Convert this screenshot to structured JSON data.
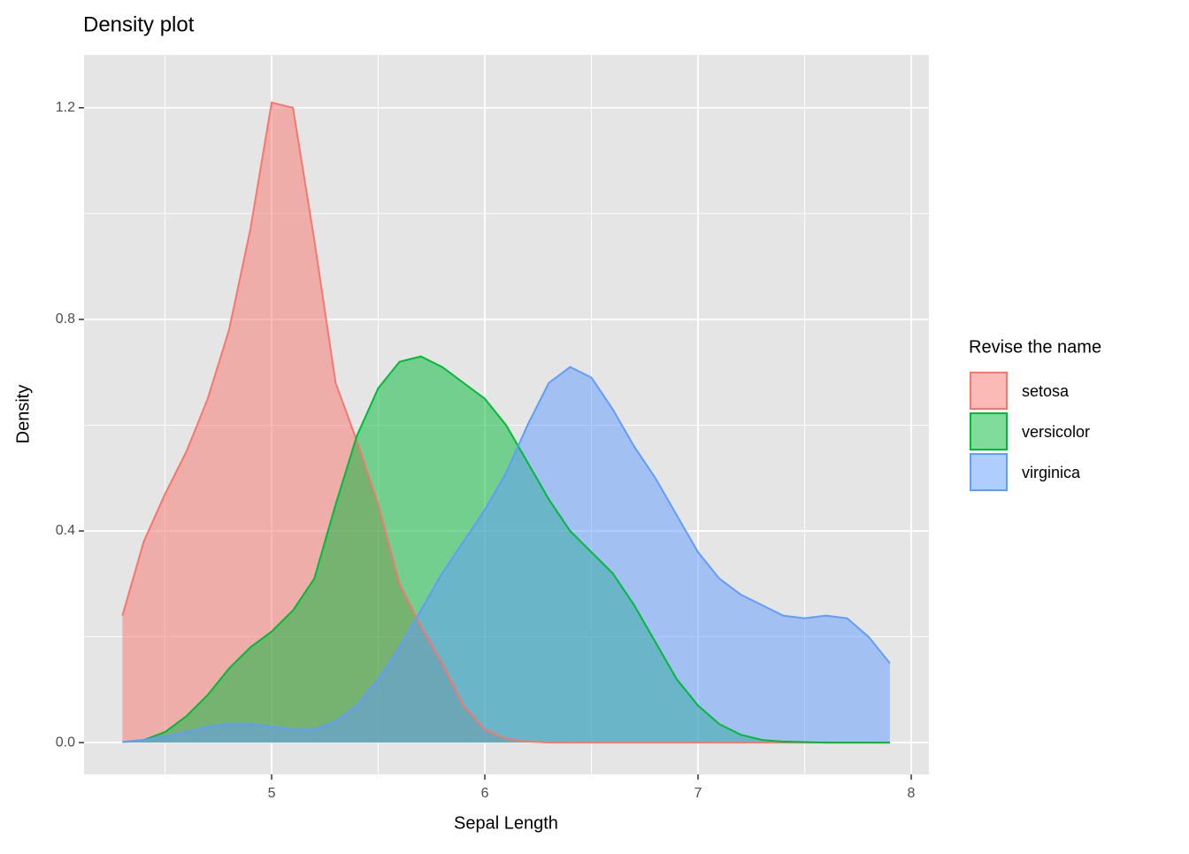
{
  "chart_data": {
    "type": "density",
    "title": "Density plot",
    "x_label": "Sepal Length",
    "y_label": "Density",
    "legend_title": "Revise the name",
    "legend_position": "right",
    "grid": true,
    "fill_opacity": 0.5,
    "x": [
      4.3,
      4.4,
      4.5,
      4.6,
      4.7,
      4.8,
      4.9,
      5.0,
      5.1,
      5.2,
      5.3,
      5.4,
      5.5,
      5.6,
      5.7,
      5.8,
      5.9,
      6.0,
      6.1,
      6.2,
      6.3,
      6.4,
      6.5,
      6.6,
      6.7,
      6.8,
      6.9,
      7.0,
      7.1,
      7.2,
      7.3,
      7.4,
      7.5,
      7.6,
      7.7,
      7.8,
      7.9
    ],
    "series": [
      {
        "name": "setosa",
        "color": "#F8766D",
        "values": [
          0.24,
          0.38,
          0.47,
          0.55,
          0.65,
          0.78,
          0.97,
          1.21,
          1.2,
          0.95,
          0.68,
          0.57,
          0.45,
          0.3,
          0.22,
          0.15,
          0.07,
          0.025,
          0.007,
          0.002,
          0,
          0,
          0,
          0,
          0,
          0,
          0,
          0,
          0,
          0,
          0,
          0,
          0,
          0,
          0,
          0,
          0
        ]
      },
      {
        "name": "versicolor",
        "color": "#00BA38",
        "values": [
          0.001,
          0.005,
          0.02,
          0.05,
          0.09,
          0.14,
          0.18,
          0.21,
          0.25,
          0.31,
          0.45,
          0.58,
          0.67,
          0.72,
          0.73,
          0.71,
          0.68,
          0.65,
          0.6,
          0.53,
          0.46,
          0.4,
          0.36,
          0.32,
          0.26,
          0.19,
          0.12,
          0.07,
          0.035,
          0.015,
          0.005,
          0.002,
          0.001,
          0,
          0,
          0,
          0
        ]
      },
      {
        "name": "virginica",
        "color": "#619CFF",
        "values": [
          0.001,
          0.005,
          0.012,
          0.02,
          0.03,
          0.035,
          0.035,
          0.03,
          0.025,
          0.025,
          0.04,
          0.07,
          0.12,
          0.18,
          0.25,
          0.32,
          0.38,
          0.44,
          0.51,
          0.6,
          0.68,
          0.71,
          0.69,
          0.63,
          0.56,
          0.5,
          0.43,
          0.36,
          0.31,
          0.28,
          0.26,
          0.24,
          0.235,
          0.24,
          0.235,
          0.2,
          0.15
        ]
      }
    ],
    "xlim": [
      4.12,
      8.083
    ],
    "ylim": [
      -0.06,
      1.3
    ],
    "xticks": [
      5,
      6,
      7,
      8
    ],
    "x_minor_ticks": [
      4.5,
      5.5,
      6.5,
      7.5
    ],
    "yticks": [
      {
        "value": 0,
        "label": "0.0"
      },
      0.4,
      0.8,
      1.2
    ],
    "y_minor_ticks": [
      0.2,
      0.6,
      1.0
    ]
  }
}
